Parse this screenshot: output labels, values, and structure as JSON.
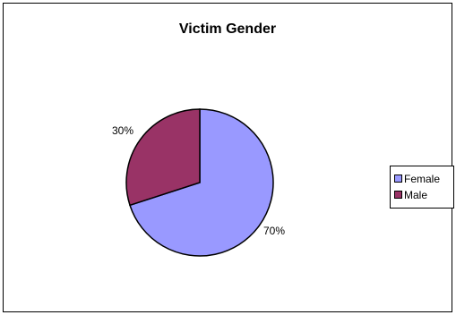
{
  "chart_data": {
    "type": "pie",
    "title": "Victim Gender",
    "categories": [
      "Female",
      "Male"
    ],
    "values": [
      70,
      30
    ],
    "data_labels": [
      "70%",
      "30%"
    ],
    "colors": [
      "#9999ff",
      "#993366"
    ],
    "legend_position": "right",
    "legend": [
      "Female",
      "Male"
    ]
  }
}
